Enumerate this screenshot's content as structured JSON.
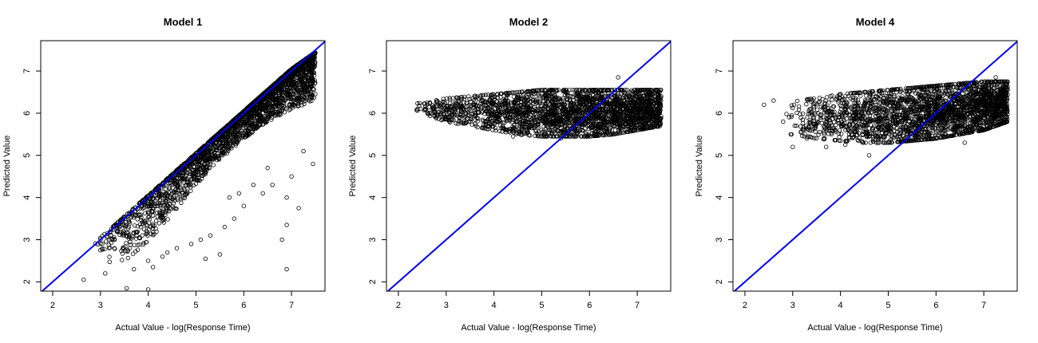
{
  "chart_data": [
    {
      "type": "scatter",
      "title": "Model 1",
      "xlabel": "Actual Value - log(Response Time)",
      "ylabel": "Predicted Value",
      "xlim": [
        1.75,
        7.7
      ],
      "ylim": [
        1.78,
        7.72
      ],
      "xticks": [
        2,
        3,
        4,
        5,
        6,
        7
      ],
      "yticks": [
        2,
        3,
        4,
        5,
        6,
        7
      ],
      "reference_line": {
        "slope": 1,
        "intercept": 0,
        "color": "#0000ee"
      },
      "point_color": "#000000",
      "cloud_bands": [
        {
          "x": 3.0,
          "y_low": 2.3,
          "y_high": 3.05
        },
        {
          "x": 3.5,
          "y_low": 2.5,
          "y_high": 3.55
        },
        {
          "x": 4.0,
          "y_low": 2.9,
          "y_high": 4.05
        },
        {
          "x": 4.5,
          "y_low": 3.6,
          "y_high": 4.55
        },
        {
          "x": 5.0,
          "y_low": 4.3,
          "y_high": 5.05
        },
        {
          "x": 5.5,
          "y_low": 4.9,
          "y_high": 5.55
        },
        {
          "x": 6.0,
          "y_low": 5.4,
          "y_high": 6.05
        },
        {
          "x": 6.5,
          "y_low": 5.8,
          "y_high": 6.55
        },
        {
          "x": 7.0,
          "y_low": 6.1,
          "y_high": 7.05
        },
        {
          "x": 7.5,
          "y_low": 6.3,
          "y_high": 7.45
        }
      ],
      "outliers": [
        [
          2.65,
          2.05
        ],
        [
          3.1,
          2.2
        ],
        [
          3.55,
          1.85
        ],
        [
          4.0,
          1.82
        ],
        [
          3.7,
          2.3
        ],
        [
          4.1,
          2.35
        ],
        [
          4.3,
          2.6
        ],
        [
          4.6,
          2.8
        ],
        [
          4.9,
          2.9
        ],
        [
          5.2,
          2.55
        ],
        [
          5.3,
          3.1
        ],
        [
          5.6,
          3.3
        ],
        [
          5.5,
          2.65
        ],
        [
          5.8,
          3.5
        ],
        [
          5.9,
          4.1
        ],
        [
          6.0,
          3.8
        ],
        [
          6.2,
          4.3
        ],
        [
          6.4,
          4.1
        ],
        [
          6.5,
          4.7
        ],
        [
          6.8,
          3.0
        ],
        [
          6.9,
          2.3
        ],
        [
          6.9,
          4.0
        ],
        [
          7.0,
          4.5
        ],
        [
          7.15,
          3.75
        ],
        [
          7.25,
          5.1
        ],
        [
          7.45,
          4.8
        ],
        [
          6.9,
          3.35
        ],
        [
          5.1,
          3.0
        ],
        [
          5.7,
          4.0
        ],
        [
          6.6,
          4.3
        ],
        [
          4.4,
          2.7
        ],
        [
          4.0,
          2.5
        ]
      ]
    },
    {
      "type": "scatter",
      "title": "Model 2",
      "xlabel": "Actual Value - log(Response Time)",
      "ylabel": "Predicted Value",
      "xlim": [
        1.75,
        7.7
      ],
      "ylim": [
        1.78,
        7.72
      ],
      "xticks": [
        2,
        3,
        4,
        5,
        6,
        7
      ],
      "yticks": [
        2,
        3,
        4,
        5,
        6,
        7
      ],
      "reference_line": {
        "slope": 1,
        "intercept": 0,
        "color": "#0000ee"
      },
      "point_color": "#000000",
      "cloud_bands": [
        {
          "x": 2.5,
          "y_low": 6.0,
          "y_high": 6.25
        },
        {
          "x": 3.0,
          "y_low": 5.8,
          "y_high": 6.35
        },
        {
          "x": 3.5,
          "y_low": 5.7,
          "y_high": 6.4
        },
        {
          "x": 4.0,
          "y_low": 5.6,
          "y_high": 6.45
        },
        {
          "x": 4.5,
          "y_low": 5.5,
          "y_high": 6.5
        },
        {
          "x": 5.0,
          "y_low": 5.45,
          "y_high": 6.55
        },
        {
          "x": 5.5,
          "y_low": 5.45,
          "y_high": 6.55
        },
        {
          "x": 6.0,
          "y_low": 5.45,
          "y_high": 6.55
        },
        {
          "x": 6.5,
          "y_low": 5.5,
          "y_high": 6.55
        },
        {
          "x": 7.0,
          "y_low": 5.6,
          "y_high": 6.55
        },
        {
          "x": 7.5,
          "y_low": 5.7,
          "y_high": 6.55
        }
      ],
      "outliers": [
        [
          2.4,
          6.1
        ],
        [
          2.6,
          6.25
        ],
        [
          2.75,
          6.05
        ],
        [
          6.6,
          6.85
        ],
        [
          4.4,
          5.45
        ],
        [
          5.4,
          5.4
        ]
      ]
    },
    {
      "type": "scatter",
      "title": "Model 4",
      "xlabel": "Actual Value - log(Response Time)",
      "ylabel": "Predicted Value",
      "xlim": [
        1.75,
        7.7
      ],
      "ylim": [
        1.78,
        7.72
      ],
      "xticks": [
        2,
        3,
        4,
        5,
        6,
        7
      ],
      "yticks": [
        2,
        3,
        4,
        5,
        6,
        7
      ],
      "reference_line": {
        "slope": 1,
        "intercept": 0,
        "color": "#0000ee"
      },
      "point_color": "#000000",
      "cloud_bands": [
        {
          "x": 3.0,
          "y_low": 5.5,
          "y_high": 6.3
        },
        {
          "x": 3.5,
          "y_low": 5.4,
          "y_high": 6.35
        },
        {
          "x": 4.0,
          "y_low": 5.35,
          "y_high": 6.45
        },
        {
          "x": 4.5,
          "y_low": 5.3,
          "y_high": 6.5
        },
        {
          "x": 5.0,
          "y_low": 5.3,
          "y_high": 6.55
        },
        {
          "x": 5.5,
          "y_low": 5.35,
          "y_high": 6.6
        },
        {
          "x": 6.0,
          "y_low": 5.4,
          "y_high": 6.65
        },
        {
          "x": 6.5,
          "y_low": 5.5,
          "y_high": 6.7
        },
        {
          "x": 7.0,
          "y_low": 5.6,
          "y_high": 6.75
        },
        {
          "x": 7.5,
          "y_low": 5.8,
          "y_high": 6.75
        }
      ],
      "outliers": [
        [
          2.4,
          6.2
        ],
        [
          2.6,
          6.3
        ],
        [
          2.8,
          5.8
        ],
        [
          3.0,
          5.2
        ],
        [
          3.3,
          5.4
        ],
        [
          3.7,
          5.2
        ],
        [
          4.1,
          5.25
        ],
        [
          4.6,
          5.0
        ],
        [
          6.6,
          5.3
        ],
        [
          7.25,
          6.85
        ]
      ]
    }
  ]
}
